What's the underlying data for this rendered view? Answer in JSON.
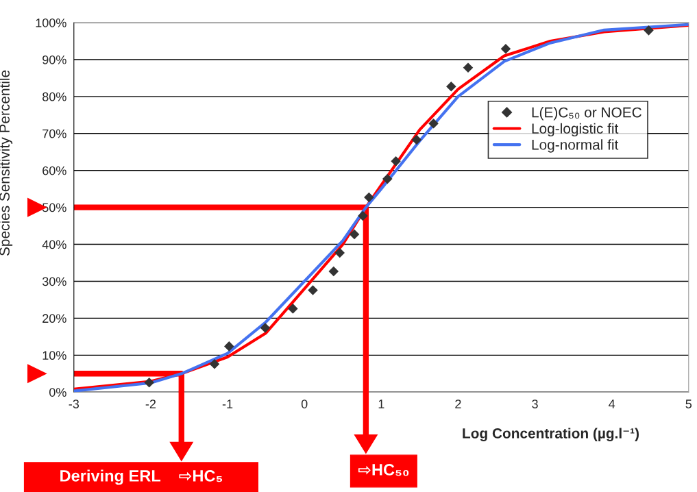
{
  "chart_data": {
    "type": "scatter",
    "xlabel": "Log Concentration (µg.l⁻¹)",
    "ylabel": "Species Sensitivity Percentile",
    "xlim": [
      -3,
      5
    ],
    "xticks": [
      -3,
      -2,
      -1,
      0,
      1,
      2,
      3,
      4,
      5
    ],
    "ylim": [
      0,
      100
    ],
    "yticks": [
      {
        "value": 0,
        "label": "0%"
      },
      {
        "value": 10,
        "label": "10%"
      },
      {
        "value": 20,
        "label": "20%"
      },
      {
        "value": 30,
        "label": "30%"
      },
      {
        "value": 40,
        "label": "40%"
      },
      {
        "value": 50,
        "label": "50%"
      },
      {
        "value": 60,
        "label": "60%"
      },
      {
        "value": 70,
        "label": "70%"
      },
      {
        "value": 80,
        "label": "80%"
      },
      {
        "value": 90,
        "label": "90%"
      },
      {
        "value": 100,
        "label": "100%"
      }
    ],
    "grid": "y",
    "legend": "right",
    "series": [
      {
        "name": "L(E)C₅₀ or NOEC",
        "marker": "diamond",
        "color": "#333333",
        "x": [
          -2.02,
          -1.17,
          -0.98,
          -0.51,
          -0.15,
          0.11,
          0.38,
          0.46,
          0.65,
          0.76,
          0.84,
          1.08,
          1.19,
          1.46,
          1.68,
          1.91,
          2.13,
          2.62,
          4.48
        ],
        "values": [
          2.6,
          7.6,
          12.4,
          17.4,
          22.6,
          27.6,
          32.7,
          37.7,
          42.7,
          47.7,
          52.7,
          57.7,
          62.5,
          68.3,
          72.7,
          82.7,
          87.8,
          92.9,
          97.9
        ]
      },
      {
        "name": "Log-logistic fit",
        "type": "line",
        "marker": "none",
        "color": "#ff0000",
        "x": [
          -3,
          -2,
          -1.6,
          -1,
          -0.5,
          0,
          0.5,
          0.8,
          1,
          1.5,
          2,
          2.6,
          3.2,
          3.9,
          5
        ],
        "values": [
          0.8,
          2.9,
          5,
          9.5,
          16,
          28,
          40,
          50,
          56,
          71,
          82,
          91,
          95,
          97.5,
          99.3
        ]
      },
      {
        "name": "Log-normal fit",
        "type": "line",
        "marker": "none",
        "color": "#4472f0",
        "x": [
          -3,
          -2,
          -1.6,
          -1,
          -0.5,
          0,
          0.5,
          0.8,
          1,
          1.5,
          2,
          2.6,
          3.2,
          3.9,
          5
        ],
        "values": [
          0.3,
          2.5,
          5,
          10.5,
          19,
          30,
          41,
          50,
          55,
          68,
          80,
          89.5,
          94.5,
          98,
          99.5
        ]
      },
      {
        "type": "line",
        "marker": "none",
        "color": "#ff0000",
        "x": [
          -3,
          0.8,
          0.8
        ],
        "values": [
          50,
          50,
          0
        ]
      },
      {
        "type": "line",
        "marker": "none",
        "color": "#ff0000",
        "x": [
          -3,
          -1.6,
          -1.6
        ],
        "values": [
          5,
          5,
          0
        ]
      }
    ],
    "annotations": [
      "⇨HC₅₀",
      "Deriving ERL    ⇨HC₅"
    ]
  }
}
